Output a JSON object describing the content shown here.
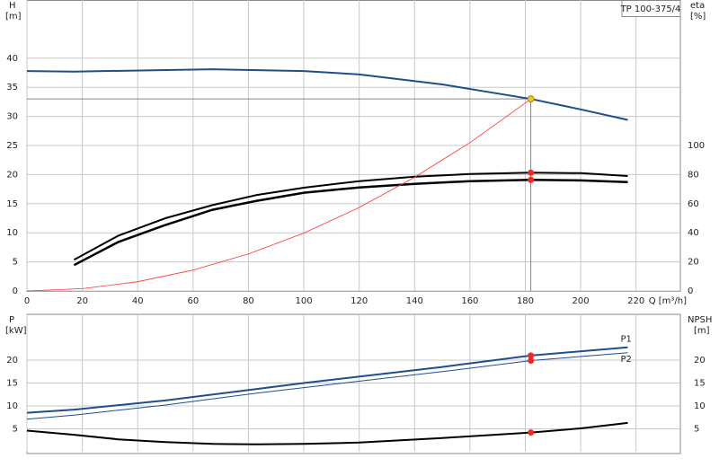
{
  "chart_data": [
    {
      "type": "line",
      "title": "TP 100-375/4",
      "ylabel": "H",
      "yunit": "[m]",
      "y2label": "eta",
      "y2unit": "[%]",
      "xlabel": "Q [m³/h]",
      "xlim": [
        0,
        236
      ],
      "xticks": [
        0,
        20,
        40,
        60,
        80,
        100,
        120,
        140,
        160,
        180,
        200,
        220
      ],
      "ylim": [
        0,
        50
      ],
      "yticks": [
        0,
        5,
        10,
        15,
        20,
        25,
        30,
        35,
        40
      ],
      "y2lim": [
        0,
        200
      ],
      "y2ticks": [
        0,
        20,
        40,
        60,
        80,
        100
      ],
      "grid": true,
      "series": [
        {
          "color": "#1f4e8c",
          "width": 2,
          "x": [
            0,
            17,
            67,
            100,
            120,
            150,
            182,
            200,
            217
          ],
          "values": [
            37.8,
            37.7,
            38.1,
            37.8,
            37.2,
            35.5,
            33,
            31.2,
            29.4
          ]
        },
        {
          "color": "#000000",
          "width": 2,
          "axis": "y2",
          "x": [
            17,
            33,
            50,
            67,
            83,
            100,
            120,
            140,
            160,
            182,
            200,
            217
          ],
          "values": [
            21.5,
            38,
            50,
            59,
            66,
            71,
            75.5,
            78.5,
            80.4,
            81.3,
            81,
            79
          ]
        },
        {
          "color": "#000000",
          "width": 2.5,
          "axis": "y2",
          "x": [
            17,
            33,
            50,
            67,
            83,
            100,
            120,
            140,
            160,
            182,
            200,
            217
          ],
          "values": [
            17.8,
            33.7,
            45.4,
            55.8,
            62,
            67.5,
            71.2,
            73.6,
            75.5,
            76.4,
            76,
            74.8
          ]
        },
        {
          "color": "#ff3333",
          "width": 0.8,
          "x": [
            0,
            20,
            40,
            60,
            80,
            100,
            120,
            140,
            160,
            182
          ],
          "values": [
            0,
            0.4,
            1.59,
            3.59,
            6.38,
            9.96,
            14.35,
            19.53,
            25.5,
            33
          ]
        }
      ],
      "markers": [
        {
          "x": 182,
          "y": 33,
          "color": "#f5c518"
        },
        {
          "x": 182,
          "y": 81.3,
          "axis": "y2",
          "color": "#ff2222"
        },
        {
          "x": 182,
          "y": 76.4,
          "axis": "y2",
          "color": "#ff2222"
        }
      ]
    },
    {
      "type": "line",
      "ylabel": "P",
      "yunit": "[kW]",
      "y2label": "NPSH",
      "y2unit": "[m]",
      "xlim": [
        0,
        236
      ],
      "ylim": [
        0,
        30
      ],
      "yticks": [
        5,
        10,
        15,
        20
      ],
      "y2lim": [
        0,
        30
      ],
      "y2ticks": [
        5,
        10,
        15,
        20
      ],
      "grid": true,
      "series": [
        {
          "name": "P1",
          "color": "#1f4e8c",
          "width": 2,
          "x": [
            0,
            17,
            50,
            83,
            100,
            150,
            182,
            217
          ],
          "values": [
            8.5,
            9.2,
            11.2,
            13.7,
            15,
            18.5,
            21,
            22.8
          ]
        },
        {
          "name": "P2",
          "color": "#1f4e8c",
          "width": 1,
          "x": [
            0,
            17,
            50,
            83,
            100,
            150,
            182,
            217
          ],
          "values": [
            7.1,
            8,
            10.2,
            12.8,
            14,
            17.5,
            19.9,
            21.6
          ]
        },
        {
          "color": "#000000",
          "width": 2,
          "axis": "y2",
          "x": [
            0,
            17,
            33,
            50,
            67,
            83,
            100,
            120,
            150,
            182,
            200,
            217
          ],
          "values": [
            4.6,
            3.7,
            2.7,
            2.1,
            1.7,
            1.6,
            1.7,
            2,
            3,
            4.2,
            5.1,
            6.3
          ]
        }
      ],
      "markers": [
        {
          "x": 182,
          "y": 21,
          "color": "#ff2222"
        },
        {
          "x": 182,
          "y": 19.9,
          "color": "#ff2222"
        },
        {
          "x": 182,
          "y": 4.2,
          "axis": "y2",
          "color": "#ff2222"
        }
      ]
    }
  ]
}
